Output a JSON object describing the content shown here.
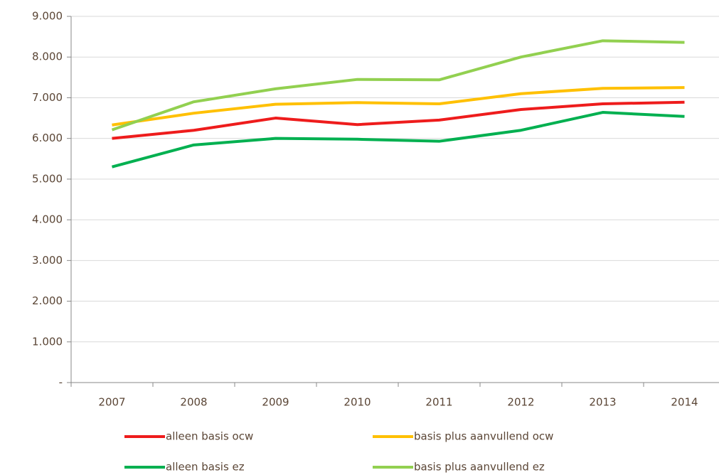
{
  "chart_data": {
    "type": "line",
    "categories": [
      "2007",
      "2008",
      "2009",
      "2010",
      "2011",
      "2012",
      "2013",
      "2014"
    ],
    "series": [
      {
        "name": "alleen basis ocw",
        "color": "#ee1c1c",
        "values": [
          6000,
          6200,
          6500,
          6340,
          6450,
          6710,
          6850,
          6890
        ]
      },
      {
        "name": "basis plus aanvullend ocw",
        "color": "#ffc000",
        "values": [
          6330,
          6620,
          6840,
          6880,
          6850,
          7100,
          7230,
          7250
        ]
      },
      {
        "name": "alleen basis ez",
        "color": "#00b050",
        "values": [
          5300,
          5840,
          6000,
          5980,
          5930,
          6200,
          6640,
          6540
        ]
      },
      {
        "name": "basis plus aanvullend ez",
        "color": "#92d050",
        "values": [
          6210,
          6900,
          7220,
          7450,
          7440,
          8000,
          8400,
          8360
        ]
      }
    ],
    "ylim": [
      0,
      9000
    ],
    "yticks": [
      {
        "value": 0,
        "label": "-"
      },
      {
        "value": 1000,
        "label": "1.000"
      },
      {
        "value": 2000,
        "label": "2.000"
      },
      {
        "value": 3000,
        "label": "3.000"
      },
      {
        "value": 4000,
        "label": "4.000"
      },
      {
        "value": 5000,
        "label": "5.000"
      },
      {
        "value": 6000,
        "label": "6.000"
      },
      {
        "value": 7000,
        "label": "7.000"
      },
      {
        "value": 8000,
        "label": "8.000"
      },
      {
        "value": 9000,
        "label": "9.000"
      }
    ],
    "grid": true
  }
}
